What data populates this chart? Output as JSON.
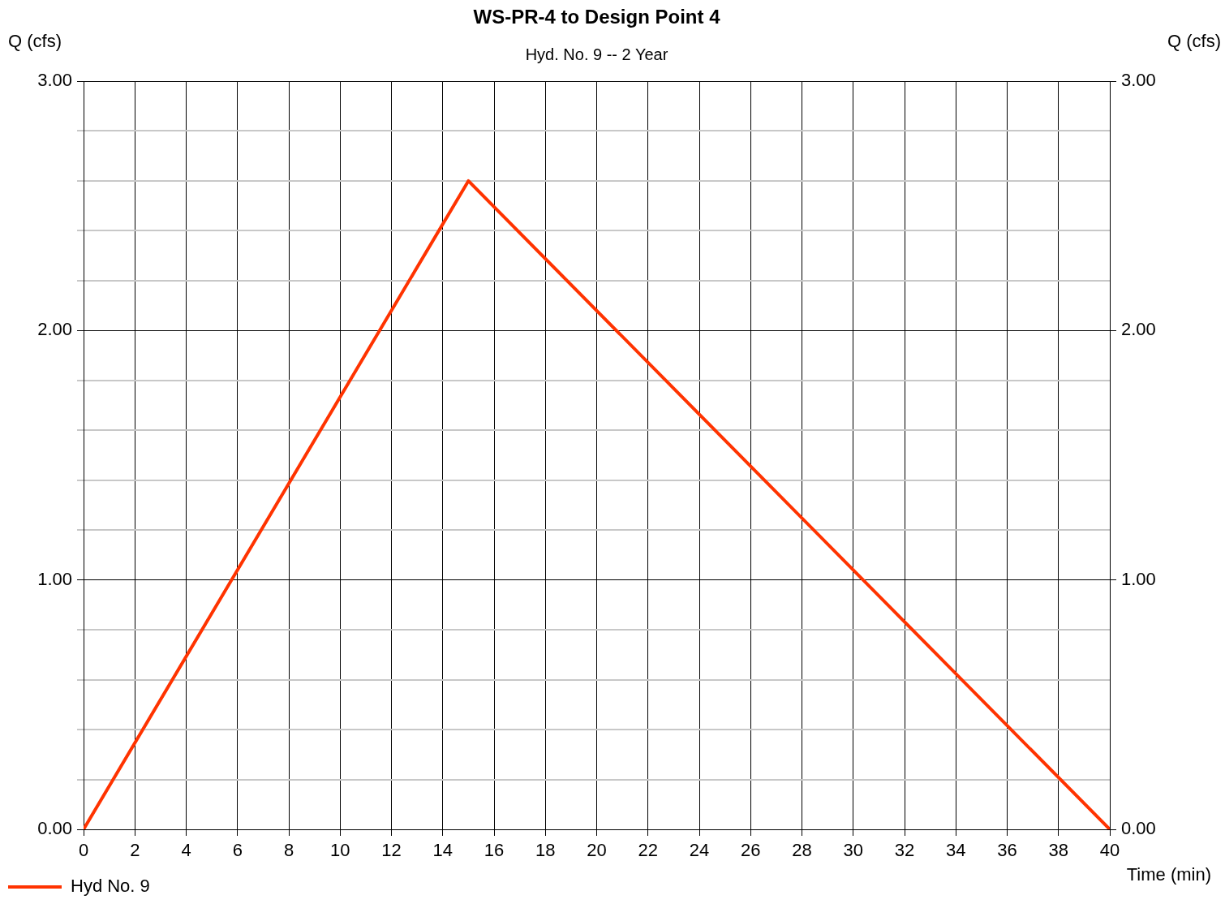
{
  "chart_data": {
    "type": "line",
    "title": "WS-PR-4 to Design Point 4",
    "subtitle": "Hyd. No. 9 -- 2 Year",
    "xlabel": "Time (min)",
    "ylabel": "Q (cfs)",
    "y2label": "Q (cfs)",
    "xlim": [
      0,
      40
    ],
    "xticks": [
      0,
      2,
      4,
      6,
      8,
      10,
      12,
      14,
      16,
      18,
      20,
      22,
      24,
      26,
      28,
      30,
      32,
      34,
      36,
      38,
      40
    ],
    "ylim": [
      0,
      3
    ],
    "yticks": [
      {
        "value": 0,
        "label": "0.00"
      },
      {
        "value": 0.2,
        "label": null
      },
      {
        "value": 0.4,
        "label": null
      },
      {
        "value": 0.6,
        "label": null
      },
      {
        "value": 0.8,
        "label": null
      },
      {
        "value": 1,
        "label": "1.00"
      },
      {
        "value": 1.2,
        "label": null
      },
      {
        "value": 1.4,
        "label": null
      },
      {
        "value": 1.6,
        "label": null
      },
      {
        "value": 1.8,
        "label": null
      },
      {
        "value": 2,
        "label": "2.00"
      },
      {
        "value": 2.2,
        "label": null
      },
      {
        "value": 2.4,
        "label": null
      },
      {
        "value": 2.6,
        "label": null
      },
      {
        "value": 2.8,
        "label": null
      },
      {
        "value": 3,
        "label": "3.00"
      }
    ],
    "y2lim": [
      0,
      3
    ],
    "y2ticks": [
      {
        "value": 0,
        "label": "0.00"
      },
      {
        "value": 1,
        "label": "1.00"
      },
      {
        "value": 2,
        "label": "2.00"
      },
      {
        "value": 3,
        "label": "3.00"
      }
    ],
    "grid": true,
    "legend": "bottom left",
    "marker": "none",
    "line_style": "solid",
    "series": [
      {
        "name": "Hyd No. 9",
        "color": "#ff3300",
        "x": [
          0,
          15,
          40
        ],
        "values": [
          0,
          2.6,
          0
        ]
      }
    ]
  }
}
